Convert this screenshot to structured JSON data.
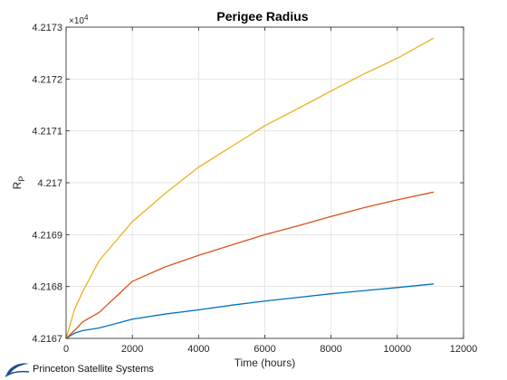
{
  "chart_data": {
    "type": "line",
    "title": "Perigee Radius",
    "xlabel": "Time (hours)",
    "ylabel": "R",
    "ylabel_subscript": "P",
    "y_exponent": "×10",
    "y_exponent_power": "4",
    "xlim": [
      0,
      12000
    ],
    "ylim": [
      4.2167,
      4.2173
    ],
    "x_ticks": [
      0,
      2000,
      4000,
      6000,
      8000,
      10000,
      12000
    ],
    "x_tick_labels": [
      "0",
      "2000",
      "4000",
      "6000",
      "8000",
      "10000",
      "12000"
    ],
    "y_ticks": [
      4.2167,
      4.2168,
      4.2169,
      4.217,
      4.2171,
      4.2172,
      4.2173
    ],
    "y_tick_labels": [
      "4.2167",
      "4.2168",
      "4.2169",
      "4.217",
      "4.2171",
      "4.2172",
      "4.2173"
    ],
    "grid": true,
    "series": [
      {
        "color": "#0072BD",
        "x": [
          0,
          250,
          500,
          1000,
          2000,
          3000,
          4000,
          5000,
          6000,
          7000,
          8000,
          9000,
          10000,
          11100
        ],
        "y": [
          4.2167,
          4.21671,
          4.216715,
          4.21672,
          4.216737,
          4.216747,
          4.216755,
          4.216764,
          4.216772,
          4.216779,
          4.216786,
          4.216792,
          4.216798,
          4.216805
        ]
      },
      {
        "color": "#D95319",
        "x": [
          0,
          250,
          500,
          1000,
          2000,
          3000,
          4000,
          5000,
          6000,
          7000,
          8000,
          9000,
          10000,
          11100
        ],
        "y": [
          4.2167,
          4.216715,
          4.216732,
          4.21675,
          4.21681,
          4.216838,
          4.21686,
          4.21688,
          4.2169,
          4.216917,
          4.216935,
          4.216952,
          4.216967,
          4.216982
        ]
      },
      {
        "color": "#EDB120",
        "x": [
          0,
          250,
          500,
          1000,
          2000,
          3000,
          4000,
          5000,
          6000,
          7000,
          8000,
          9000,
          10000,
          11100
        ],
        "y": [
          4.2167,
          4.216755,
          4.21679,
          4.21685,
          4.216925,
          4.21698,
          4.21703,
          4.21707,
          4.21711,
          4.217143,
          4.217177,
          4.21721,
          4.21724,
          4.217279
        ]
      }
    ]
  },
  "footer": {
    "company": "Princeton Satellite Systems",
    "logo_icon": "psslogo-icon"
  }
}
